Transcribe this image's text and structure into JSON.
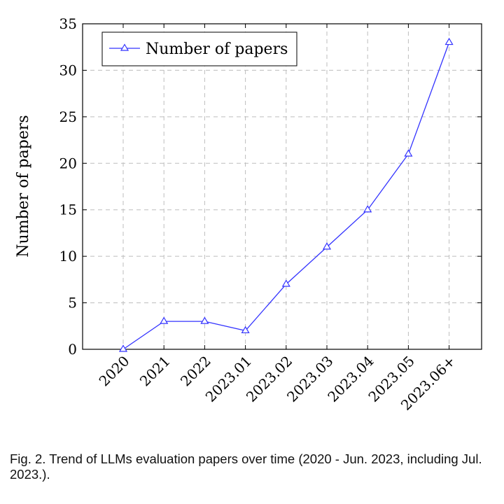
{
  "chart_data": {
    "type": "line",
    "categories": [
      "2020",
      "2021",
      "2022",
      "2023.01",
      "2023.02",
      "2023.03",
      "2023.04",
      "2023.05",
      "2023.06+"
    ],
    "series": [
      {
        "name": "Number of papers",
        "values": [
          0,
          3,
          3,
          2,
          7,
          11,
          15,
          21,
          33
        ],
        "color": "#3333ff",
        "marker": "triangle-open"
      }
    ],
    "ylabel": "Number of papers",
    "xlabel": "",
    "ylim": [
      0,
      35
    ],
    "yticks": [
      0,
      5,
      10,
      15,
      20,
      25,
      30,
      35
    ],
    "grid": true,
    "legend_position": "top-left"
  },
  "caption": "Fig. 2. Trend of LLMs evaluation papers over time (2020 - Jun. 2023, including Jul. 2023.)."
}
